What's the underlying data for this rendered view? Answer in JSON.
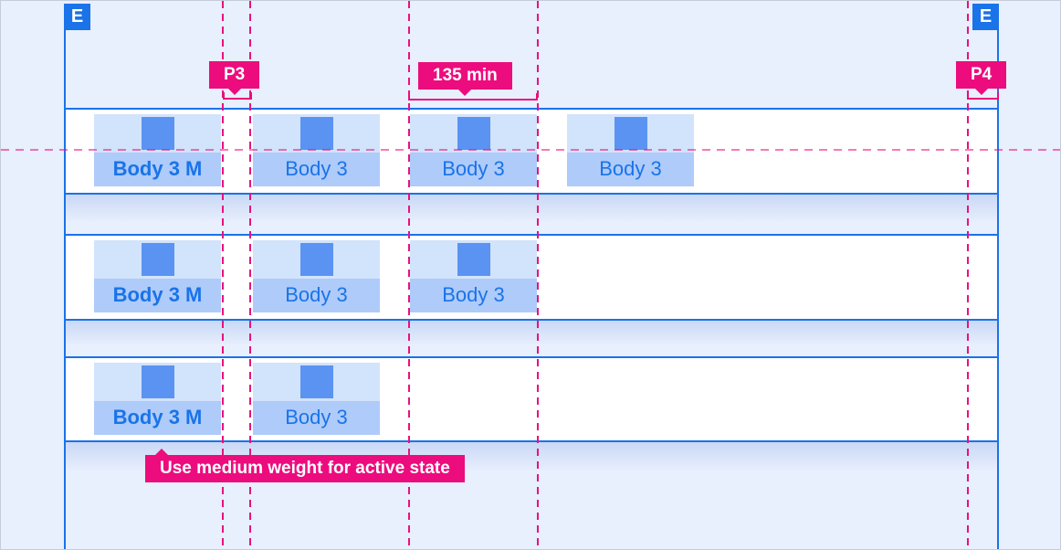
{
  "badges": {
    "left": "E",
    "right": "E"
  },
  "callouts": {
    "p3": "P3",
    "duration": "135 min",
    "p4": "P4",
    "note": "Use medium weight for active state"
  },
  "tab_rows": [
    {
      "tabs": [
        {
          "label": "Body 3 M",
          "weight": "medium"
        },
        {
          "label": "Body 3",
          "weight": "regular"
        },
        {
          "label": "Body 3",
          "weight": "regular"
        },
        {
          "label": "Body 3",
          "weight": "regular"
        }
      ]
    },
    {
      "tabs": [
        {
          "label": "Body 3 M",
          "weight": "medium"
        },
        {
          "label": "Body 3",
          "weight": "regular"
        },
        {
          "label": "Body 3",
          "weight": "regular"
        }
      ]
    },
    {
      "tabs": [
        {
          "label": "Body 3 M",
          "weight": "medium"
        },
        {
          "label": "Body 3",
          "weight": "regular"
        }
      ]
    }
  ],
  "colors": {
    "background": "#e8effd",
    "accent_blue": "#1a73e8",
    "icon_blue": "#5b93f2",
    "tab_top_bg": "#d2e3fc",
    "tab_label_bg": "#aecbfa",
    "callout_pink": "#ec0c7e",
    "guide_pink": "#e8127e",
    "row_bg": "#ffffff"
  }
}
